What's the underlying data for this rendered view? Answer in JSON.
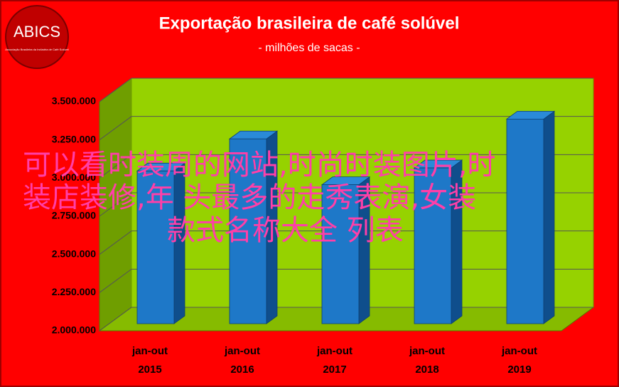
{
  "chart_data": {
    "type": "bar3d",
    "title": "Exportação brasileira de café solúvel",
    "subtitle": "- milhões de sacas -",
    "logo": {
      "name": "ABICS",
      "caption": "Associação Brasileira da Indústria de Café Solúvel"
    },
    "categories": [
      [
        "jan-out",
        "2015"
      ],
      [
        "jan-out",
        "2016"
      ],
      [
        "jan-out",
        "2017"
      ],
      [
        "jan-out",
        "2018"
      ],
      [
        "jan-out",
        "2019"
      ]
    ],
    "values": [
      3000000,
      3210000,
      2910000,
      3020000,
      3340000
    ],
    "color": "#1e78c8",
    "ylim": [
      2000000,
      3500000
    ],
    "yticks": [
      {
        "value": 2000000,
        "label": "2.000.000"
      },
      {
        "value": 2250000,
        "label": "2.250.000"
      },
      {
        "value": 2500000,
        "label": "2.500.000"
      },
      {
        "value": 2750000,
        "label": "2.750.000"
      },
      {
        "value": 3000000,
        "label": "3.000.000"
      },
      {
        "value": 3250000,
        "label": "3.250.000"
      },
      {
        "value": 3500000,
        "label": "3.500.000"
      }
    ],
    "grid": true,
    "overlay_text": [
      "可以看时装周的网站,时尚时装图片,时",
      "装店装修,年 头最多的走秀表演,女装",
      "款式名称大全 列表"
    ]
  }
}
